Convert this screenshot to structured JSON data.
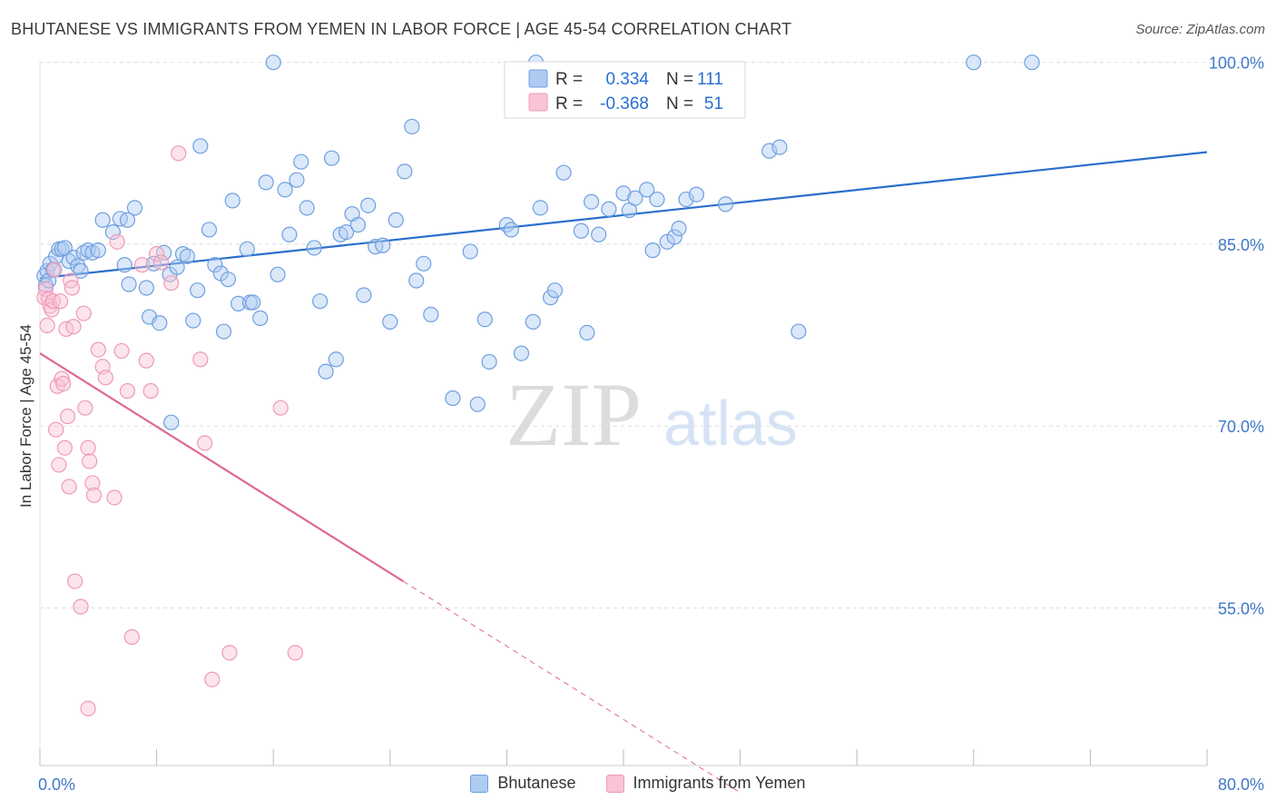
{
  "title": "BHUTANESE VS IMMIGRANTS FROM YEMEN IN LABOR FORCE | AGE 45-54 CORRELATION CHART",
  "source": "Source: ZipAtlas.com",
  "watermark": {
    "zip": "ZIP",
    "atlas": "atlas"
  },
  "legend_box": {
    "rows": [
      {
        "r_label": "R =",
        "r_value": "0.334",
        "n_label": "N =",
        "n_value": "111"
      },
      {
        "r_label": "R =",
        "r_value": "-0.368",
        "n_label": "N =",
        "n_value": "51"
      }
    ]
  },
  "chart_data": {
    "type": "scatter",
    "title": "BHUTANESE VS IMMIGRANTS FROM YEMEN IN LABOR FORCE | AGE 45-54 CORRELATION CHART",
    "xlabel": "",
    "ylabel": "In Labor Force | Age 45-54",
    "xlim": [
      0,
      80
    ],
    "ylim": [
      42,
      102
    ],
    "x_ticks": [
      0,
      8,
      16,
      24,
      32,
      40,
      48,
      56,
      64,
      72,
      80
    ],
    "x_tick_labels": [
      {
        "value": 0,
        "label": "0.0%"
      },
      {
        "value": 80,
        "label": "80.0%"
      }
    ],
    "y_ticks": [
      {
        "value": 100,
        "label": "100.0%"
      },
      {
        "value": 85,
        "label": "85.0%"
      },
      {
        "value": 70,
        "label": "70.0%"
      },
      {
        "value": 55,
        "label": "55.0%"
      }
    ],
    "grid": true,
    "legend_placement": "bottom",
    "series": [
      {
        "name": "Bhutanese",
        "color": "#6f9fe0",
        "fill": "#aecbf2",
        "line_color": "#2a6fcd",
        "trend": {
          "x": [
            0,
            80
          ],
          "y": [
            82.2,
            92.6
          ],
          "dashed_x": null
        },
        "points": [
          [
            0.3,
            82.4
          ],
          [
            0.4,
            81.6
          ],
          [
            0.5,
            82.8
          ],
          [
            0.6,
            82.0
          ],
          [
            0.7,
            83.4
          ],
          [
            0.9,
            82.9
          ],
          [
            1.1,
            84.0
          ],
          [
            1.3,
            84.6
          ],
          [
            1.5,
            84.6
          ],
          [
            1.7,
            84.7
          ],
          [
            2.0,
            83.6
          ],
          [
            2.3,
            83.9
          ],
          [
            2.6,
            83.2
          ],
          [
            2.8,
            82.8
          ],
          [
            3.0,
            84.3
          ],
          [
            3.3,
            84.5
          ],
          [
            3.6,
            84.3
          ],
          [
            4.0,
            84.5
          ],
          [
            4.3,
            87.0
          ],
          [
            5.0,
            86.0
          ],
          [
            5.5,
            87.1
          ],
          [
            6.0,
            87.0
          ],
          [
            6.5,
            88.0
          ],
          [
            5.8,
            83.3
          ],
          [
            6.1,
            81.7
          ],
          [
            7.3,
            81.4
          ],
          [
            7.5,
            79.0
          ],
          [
            7.8,
            83.4
          ],
          [
            8.2,
            78.5
          ],
          [
            8.5,
            84.3
          ],
          [
            8.9,
            82.5
          ],
          [
            9.4,
            83.1
          ],
          [
            9.8,
            84.2
          ],
          [
            10.1,
            84.0
          ],
          [
            10.5,
            78.7
          ],
          [
            10.8,
            81.2
          ],
          [
            11.0,
            93.1
          ],
          [
            11.6,
            86.2
          ],
          [
            12.0,
            83.3
          ],
          [
            12.4,
            82.6
          ],
          [
            12.6,
            77.8
          ],
          [
            12.9,
            82.1
          ],
          [
            13.2,
            88.6
          ],
          [
            13.6,
            80.1
          ],
          [
            14.2,
            84.6
          ],
          [
            14.4,
            80.2
          ],
          [
            14.6,
            80.2
          ],
          [
            15.1,
            78.9
          ],
          [
            15.5,
            90.1
          ],
          [
            16.0,
            100.0
          ],
          [
            16.3,
            82.5
          ],
          [
            16.8,
            89.5
          ],
          [
            17.1,
            85.8
          ],
          [
            17.6,
            90.3
          ],
          [
            17.9,
            91.8
          ],
          [
            18.3,
            88.0
          ],
          [
            18.8,
            84.7
          ],
          [
            19.2,
            80.3
          ],
          [
            19.6,
            74.5
          ],
          [
            20.0,
            92.1
          ],
          [
            20.3,
            75.5
          ],
          [
            20.6,
            85.8
          ],
          [
            21.0,
            86.0
          ],
          [
            21.4,
            87.5
          ],
          [
            21.8,
            86.6
          ],
          [
            22.2,
            80.8
          ],
          [
            22.5,
            88.2
          ],
          [
            23.0,
            84.8
          ],
          [
            23.5,
            84.9
          ],
          [
            24.0,
            78.6
          ],
          [
            24.4,
            87.0
          ],
          [
            25.0,
            91.0
          ],
          [
            25.5,
            94.7
          ],
          [
            25.8,
            82.0
          ],
          [
            26.3,
            83.4
          ],
          [
            26.8,
            79.2
          ],
          [
            28.3,
            72.3
          ],
          [
            29.5,
            84.4
          ],
          [
            30.0,
            71.8
          ],
          [
            30.5,
            78.8
          ],
          [
            30.8,
            75.3
          ],
          [
            32.0,
            86.6
          ],
          [
            32.3,
            86.2
          ],
          [
            33.0,
            76.0
          ],
          [
            33.8,
            78.6
          ],
          [
            34.0,
            100.0
          ],
          [
            34.3,
            88.0
          ],
          [
            35.0,
            80.6
          ],
          [
            35.3,
            81.2
          ],
          [
            35.9,
            90.9
          ],
          [
            37.1,
            86.1
          ],
          [
            37.5,
            77.7
          ],
          [
            37.8,
            88.5
          ],
          [
            38.3,
            85.8
          ],
          [
            39.0,
            87.9
          ],
          [
            40.0,
            89.2
          ],
          [
            40.4,
            87.8
          ],
          [
            40.8,
            88.8
          ],
          [
            41.6,
            89.5
          ],
          [
            42.0,
            84.5
          ],
          [
            42.3,
            88.7
          ],
          [
            43.0,
            85.2
          ],
          [
            43.5,
            85.6
          ],
          [
            43.8,
            86.3
          ],
          [
            44.3,
            88.7
          ],
          [
            45.0,
            89.1
          ],
          [
            47.0,
            88.3
          ],
          [
            50.0,
            92.7
          ],
          [
            50.7,
            93.0
          ],
          [
            52.0,
            77.8
          ],
          [
            64.0,
            100.0
          ],
          [
            68.0,
            100.0
          ],
          [
            9.0,
            70.3
          ]
        ]
      },
      {
        "name": "Immigrants from Yemen",
        "color": "#ee9ab6",
        "fill": "#f8c4d6",
        "line_color": "#e06796",
        "trend": {
          "x": [
            0,
            24.9
          ],
          "y": [
            76.0,
            57.2
          ],
          "dashed_x": [
            24.9,
            48
          ]
        },
        "points": [
          [
            0.3,
            80.6
          ],
          [
            0.4,
            81.3
          ],
          [
            0.5,
            78.3
          ],
          [
            0.6,
            80.5
          ],
          [
            0.7,
            79.9
          ],
          [
            0.8,
            79.6
          ],
          [
            0.9,
            80.3
          ],
          [
            1.0,
            82.9
          ],
          [
            1.1,
            69.7
          ],
          [
            1.2,
            73.3
          ],
          [
            1.3,
            66.8
          ],
          [
            1.4,
            80.3
          ],
          [
            1.5,
            73.9
          ],
          [
            1.6,
            73.5
          ],
          [
            1.7,
            68.2
          ],
          [
            1.8,
            78.0
          ],
          [
            2.0,
            65.0
          ],
          [
            2.1,
            82.0
          ],
          [
            2.2,
            81.4
          ],
          [
            2.3,
            78.2
          ],
          [
            2.4,
            57.2
          ],
          [
            3.0,
            79.3
          ],
          [
            3.1,
            71.5
          ],
          [
            3.3,
            68.2
          ],
          [
            3.4,
            67.1
          ],
          [
            3.6,
            65.3
          ],
          [
            3.7,
            64.3
          ],
          [
            4.0,
            76.3
          ],
          [
            4.3,
            74.9
          ],
          [
            4.5,
            74.0
          ],
          [
            5.1,
            64.1
          ],
          [
            5.3,
            85.2
          ],
          [
            5.6,
            76.2
          ],
          [
            6.0,
            72.9
          ],
          [
            6.3,
            52.6
          ],
          [
            7.0,
            83.3
          ],
          [
            7.3,
            75.4
          ],
          [
            7.6,
            72.9
          ],
          [
            8.0,
            84.2
          ],
          [
            8.3,
            83.5
          ],
          [
            9.0,
            81.8
          ],
          [
            9.5,
            92.5
          ],
          [
            11.0,
            75.5
          ],
          [
            11.3,
            68.6
          ],
          [
            11.8,
            49.1
          ],
          [
            13.0,
            51.3
          ],
          [
            16.5,
            71.5
          ],
          [
            17.5,
            51.3
          ],
          [
            2.8,
            55.1
          ],
          [
            3.3,
            46.7
          ],
          [
            1.9,
            70.8
          ]
        ]
      }
    ]
  }
}
